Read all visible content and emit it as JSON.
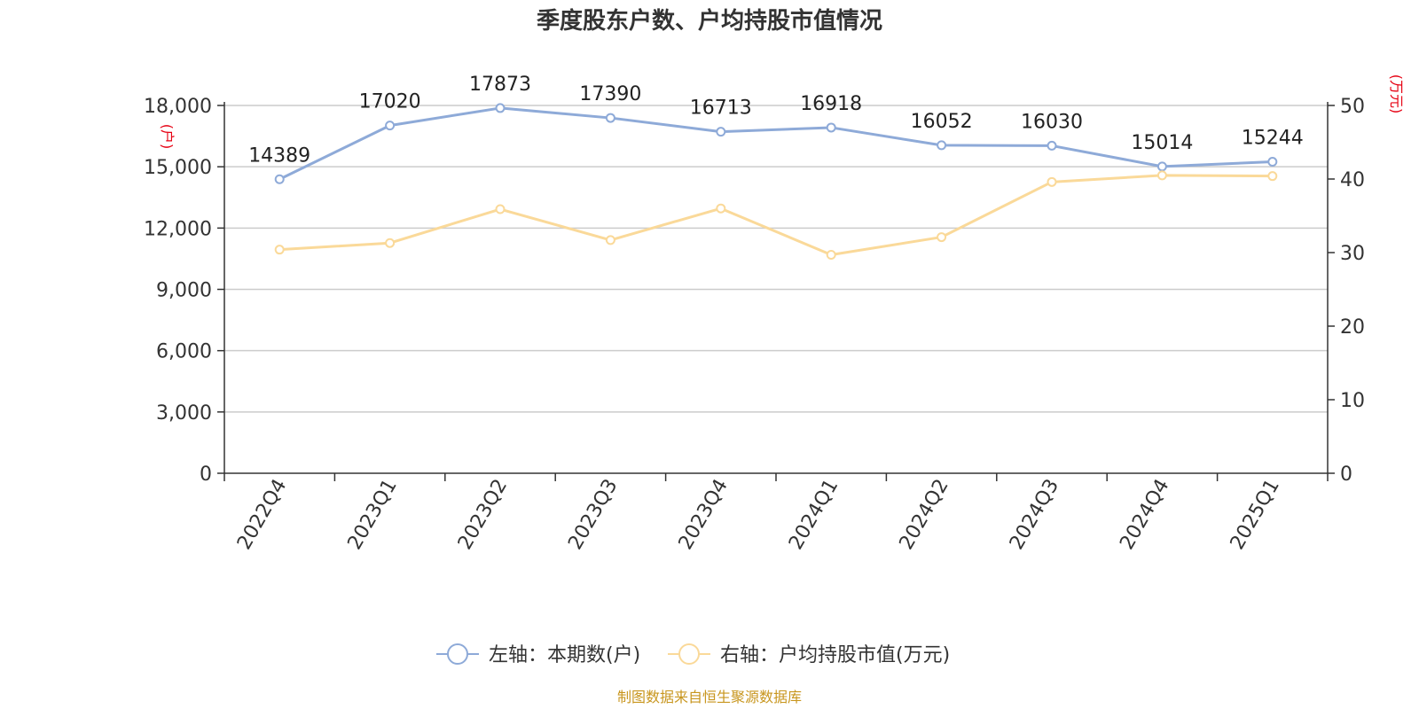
{
  "chart_data": {
    "type": "line",
    "title": "季度股东户数、户均持股市值情况",
    "categories": [
      "2022Q4",
      "2023Q1",
      "2023Q2",
      "2023Q3",
      "2023Q4",
      "2024Q1",
      "2024Q2",
      "2024Q3",
      "2024Q4",
      "2025Q1"
    ],
    "left_axis": {
      "unit": "(户)",
      "ylim": [
        0,
        18000
      ],
      "ticks": [
        0,
        3000,
        6000,
        9000,
        12000,
        15000,
        18000
      ],
      "tick_labels": [
        "0",
        "3,000",
        "6,000",
        "9,000",
        "12,000",
        "15,000",
        "18,000"
      ]
    },
    "right_axis": {
      "unit": "(万元)",
      "ylim": [
        0,
        50
      ],
      "ticks": [
        0,
        10,
        20,
        30,
        40,
        50
      ],
      "tick_labels": [
        "0",
        "10",
        "20",
        "30",
        "40",
        "50"
      ]
    },
    "series": [
      {
        "name": "左轴：本期数(户)",
        "axis": "left",
        "color": "#8eaad8",
        "values": [
          14389,
          17020,
          17873,
          17390,
          16713,
          16918,
          16052,
          16030,
          15014,
          15244
        ],
        "data_labels": [
          "14389",
          "17020",
          "17873",
          "17390",
          "16713",
          "16918",
          "16052",
          "16030",
          "15014",
          "15244"
        ]
      },
      {
        "name": "右轴：户均持股市值(万元)",
        "axis": "right",
        "color": "#fad999",
        "values": [
          30.4,
          31.3,
          35.9,
          31.7,
          36.0,
          29.7,
          32.1,
          39.6,
          40.5,
          40.4
        ]
      }
    ],
    "grid": true,
    "legend_position": "bottom-center"
  },
  "source_text": "制图数据来自恒生聚源数据库"
}
